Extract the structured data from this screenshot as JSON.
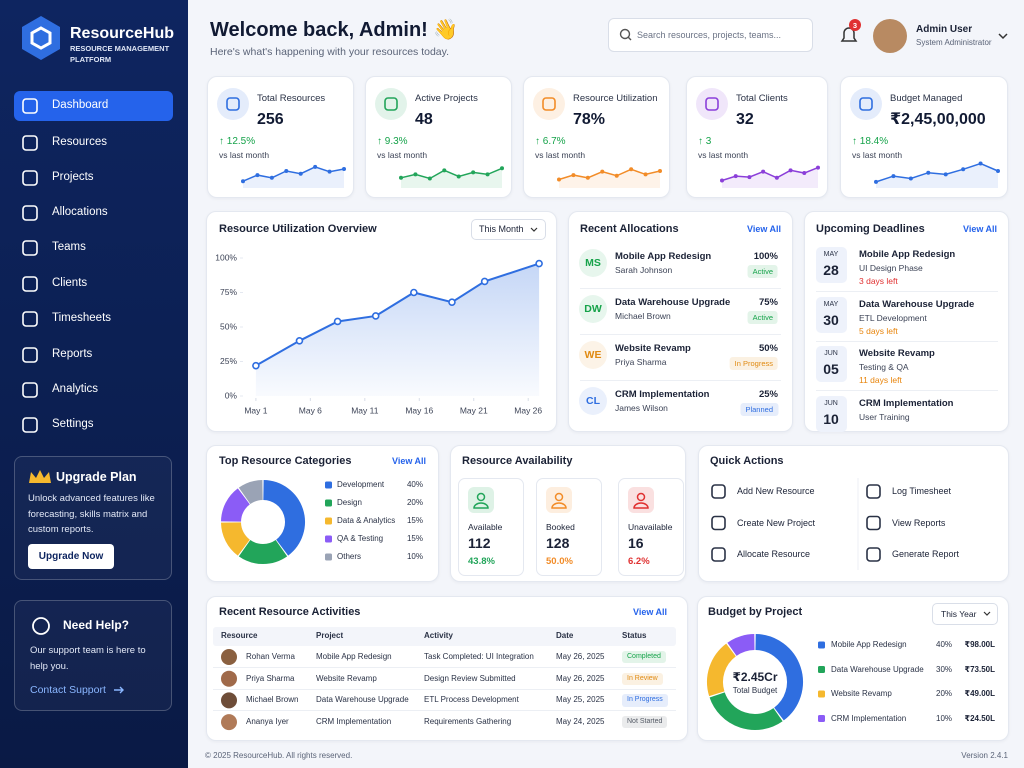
{
  "brand": {
    "name": "ResourceHub",
    "tagline": "RESOURCE MANAGEMENT PLATFORM"
  },
  "nav": [
    "Dashboard",
    "Resources",
    "Projects",
    "Allocations",
    "Teams",
    "Clients",
    "Timesheets",
    "Reports",
    "Analytics",
    "Settings"
  ],
  "upgrade": {
    "title": "Upgrade Plan",
    "text": "Unlock advanced features like forecasting, skills matrix and custom reports.",
    "button": "Upgrade Now"
  },
  "help": {
    "title": "Need Help?",
    "text": "Our support team is here to help you.",
    "link": "Contact Support"
  },
  "header": {
    "title": "Welcome back, Admin! 👋",
    "subtitle": "Here's what's happening with your resources today.",
    "search": "Search resources, projects, teams...",
    "notifications": 3,
    "user": "Admin User",
    "role": "System Administrator"
  },
  "kpis": [
    {
      "label": "Total Resources",
      "value": 256,
      "change": "↑ 12.5%",
      "note": "vs last month",
      "color": "#2f6ee0",
      "trend": {
        "values": [
          20,
          38,
          30,
          50,
          42,
          62,
          48,
          56
        ],
        "ylim": [
          0,
          100
        ]
      }
    },
    {
      "label": "Active Projects",
      "value": 48,
      "change": "↑ 9.3%",
      "note": "vs last month",
      "color": "#22a55a",
      "trend": {
        "values": [
          30,
          40,
          28,
          52,
          34,
          46,
          40,
          58
        ],
        "ylim": [
          0,
          100
        ]
      }
    },
    {
      "label": "Resource Utilization",
      "value": "78%",
      "change": "↑ 6.7%",
      "note": "vs last month",
      "color": "#f28c28",
      "trend": {
        "values": [
          25,
          38,
          30,
          48,
          36,
          55,
          40,
          50
        ],
        "ylim": [
          0,
          100
        ]
      }
    },
    {
      "label": "Total Clients",
      "value": 32,
      "change": "↑ 3",
      "note": "vs last month",
      "color": "#8b3fd9",
      "trend": {
        "values": [
          22,
          35,
          32,
          48,
          30,
          52,
          44,
          60
        ],
        "ylim": [
          0,
          100
        ]
      }
    },
    {
      "label": "Budget Managed",
      "value": "₹2,45,00,000",
      "change": "↑ 18.4%",
      "note": "vs last month",
      "color": "#2f6ee0",
      "trend": {
        "values": [
          18,
          35,
          28,
          45,
          40,
          55,
          72,
          50
        ],
        "ylim": [
          0,
          100
        ]
      }
    }
  ],
  "utilization": {
    "title": "Resource Utilization Overview",
    "period": "This Month",
    "color": "#2f6ee0",
    "x": [
      1,
      5,
      8.5,
      12,
      15.5,
      19,
      22,
      27
    ],
    "values": [
      22,
      40,
      54,
      58,
      75,
      68,
      83,
      96
    ],
    "xlim": [
      0,
      28
    ],
    "xticks": [
      {
        "value": 1,
        "label": "May 1"
      },
      {
        "value": 6,
        "label": "May 6"
      },
      {
        "value": 11,
        "label": "May 11"
      },
      {
        "value": 16,
        "label": "May 16"
      },
      {
        "value": 21,
        "label": "May 21"
      },
      {
        "value": 26,
        "label": "May 26"
      }
    ],
    "ylim": [
      0,
      100
    ],
    "yticks": [
      {
        "value": 0,
        "label": "0%"
      },
      {
        "value": 25,
        "label": "25%"
      },
      {
        "value": 50,
        "label": "50%"
      },
      {
        "value": 75,
        "label": "75%"
      },
      {
        "value": 100,
        "label": "100%"
      }
    ]
  },
  "allocations": {
    "title": "Recent Allocations",
    "view_all": "View All",
    "items": [
      {
        "initials": "MS",
        "project": "Mobile App Redesign",
        "person": "Sarah Johnson",
        "percent": "100%",
        "status": "Active",
        "color": "#16a34a"
      },
      {
        "initials": "DW",
        "project": "Data Warehouse Upgrade",
        "person": "Michael Brown",
        "percent": "75%",
        "status": "Active",
        "color": "#16a34a"
      },
      {
        "initials": "WE",
        "project": "Website Revamp",
        "person": "Priya Sharma",
        "percent": "50%",
        "status": "In Progress",
        "color": "#e08a12"
      },
      {
        "initials": "CL",
        "project": "CRM Implementation",
        "person": "James Wilson",
        "percent": "25%",
        "status": "Planned",
        "color": "#2f6ee0"
      }
    ]
  },
  "deadlines": {
    "title": "Upcoming Deadlines",
    "view_all": "View All",
    "items": [
      {
        "month": "MAY",
        "day": "28",
        "project": "Mobile App Redesign",
        "phase": "UI Design Phase",
        "due": "3 days left",
        "color": "#e03131"
      },
      {
        "month": "MAY",
        "day": "30",
        "project": "Data Warehouse Upgrade",
        "phase": "ETL Development",
        "due": "5 days left",
        "color": "#e8850c"
      },
      {
        "month": "JUN",
        "day": "05",
        "project": "Website Revamp",
        "phase": "Testing & QA",
        "due": "11 days left",
        "color": "#e8850c"
      },
      {
        "month": "JUN",
        "day": "10",
        "project": "CRM Implementation",
        "phase": "User Training"
      }
    ]
  },
  "categories": {
    "title": "Top Resource Categories",
    "view_all": "View All",
    "names": [
      "Development",
      "Design",
      "Data & Analytics",
      "QA & Testing",
      "Others"
    ],
    "values": [
      40,
      20,
      15,
      15,
      10
    ],
    "value_labels": [
      "40%",
      "20%",
      "15%",
      "15%",
      "10%"
    ],
    "colors": [
      "#2f6ee0",
      "#22a55a",
      "#f5b82e",
      "#8b5cf6",
      "#9aa3b5"
    ]
  },
  "availability": {
    "title": "Resource Availability",
    "items": [
      {
        "label": "Available",
        "value": 112,
        "percent": "43.8%",
        "color": "#22a55a"
      },
      {
        "label": "Booked",
        "value": 128,
        "percent": "50.0%",
        "color": "#f28c28"
      },
      {
        "label": "Unavailable",
        "value": 16,
        "percent": "6.2%",
        "color": "#e03131"
      }
    ]
  },
  "quick_actions": {
    "title": "Quick Actions",
    "items": [
      "Add New Resource",
      "Log Timesheet",
      "Create New Project",
      "View Reports",
      "Allocate Resource",
      "Generate Report"
    ]
  },
  "activities": {
    "title": "Recent Resource Activities",
    "view_all": "View All",
    "columns": [
      "Resource",
      "Project",
      "Activity",
      "Date",
      "Status"
    ],
    "rows": [
      [
        "Rohan Verma",
        "Mobile App Redesign",
        "Task Completed: UI Integration",
        "May 26, 2025",
        "Completed"
      ],
      [
        "Priya Sharma",
        "Website Revamp",
        "Design Review Submitted",
        "May 26, 2025",
        "In Review"
      ],
      [
        "Michael Brown",
        "Data Warehouse Upgrade",
        "ETL Process Development",
        "May 25, 2025",
        "In Progress"
      ],
      [
        "Ananya Iyer",
        "CRM Implementation",
        "Requirements Gathering",
        "May 24, 2025",
        "Not Started"
      ]
    ],
    "status_colors": [
      "#16a34a",
      "#e08a12",
      "#2f6ee0",
      "#555b66"
    ]
  },
  "budget": {
    "title": "Budget by Project",
    "period": "This Year",
    "center_value": "₹2.45Cr",
    "center_label": "Total Budget",
    "names": [
      "Mobile App Redesign",
      "Data Warehouse Upgrade",
      "Website Revamp",
      "CRM Implementation"
    ],
    "values": [
      40,
      30,
      20,
      10
    ],
    "value_labels": [
      "40%",
      "30%",
      "20%",
      "10%"
    ],
    "amounts": [
      "₹98.00L",
      "₹73.50L",
      "₹49.00L",
      "₹24.50L"
    ],
    "colors": [
      "#2f6ee0",
      "#22a55a",
      "#f5b82e",
      "#8b5cf6"
    ]
  },
  "footer": {
    "copyright": "© 2025 ResourceHub. All rights reserved.",
    "version": "Version 2.4.1"
  }
}
